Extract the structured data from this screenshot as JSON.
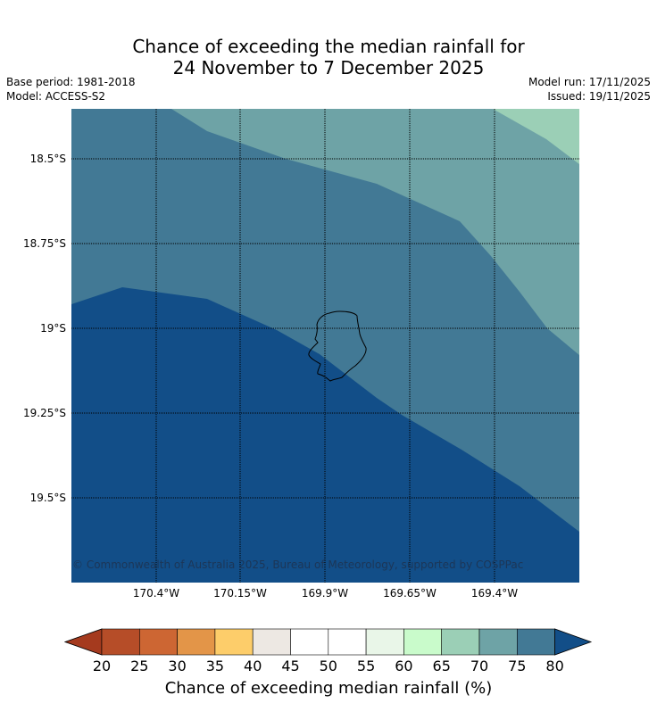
{
  "title_line1": "Chance of exceeding the median rainfall for",
  "title_line2": "24 November to 7 December 2025",
  "base_period": "Base period: 1981-2018",
  "model": "Model: ACCESS-S2",
  "model_run": "Model run: 17/11/2025",
  "issued": "Issued: 19/11/2025",
  "lat_labels": [
    "18.5°S",
    "18.75°S",
    "19°S",
    "19.25°S",
    "19.5°S"
  ],
  "lon_labels": [
    "170.4°W",
    "170.15°W",
    "169.9°W",
    "169.65°W",
    "169.4°W"
  ],
  "copyright": "© Commonwealth of Australia 2025, Bureau of Meteorology, supported by COSPPac",
  "colorbar": {
    "label": "Chance of exceeding median rainfall (%)",
    "ticks": [
      "20",
      "25",
      "30",
      "35",
      "40",
      "45",
      "50",
      "55",
      "60",
      "65",
      "70",
      "75",
      "80"
    ],
    "colors": [
      "#a53a1e",
      "#b64d28",
      "#cd6633",
      "#e39548",
      "#fdcd6a",
      "#ede8e3",
      "#ffffff",
      "#ffffff",
      "#e9f6e8",
      "#c9fbcb",
      "#9bcfb6",
      "#6ea3a6",
      "#427995",
      "#124e88"
    ]
  },
  "zone_colors": {
    "band_70_75": "#6ea3a6",
    "band_65_70": "#9bcfb6",
    "band_75_80": "#427995",
    "band_above_80": "#124e88"
  }
}
